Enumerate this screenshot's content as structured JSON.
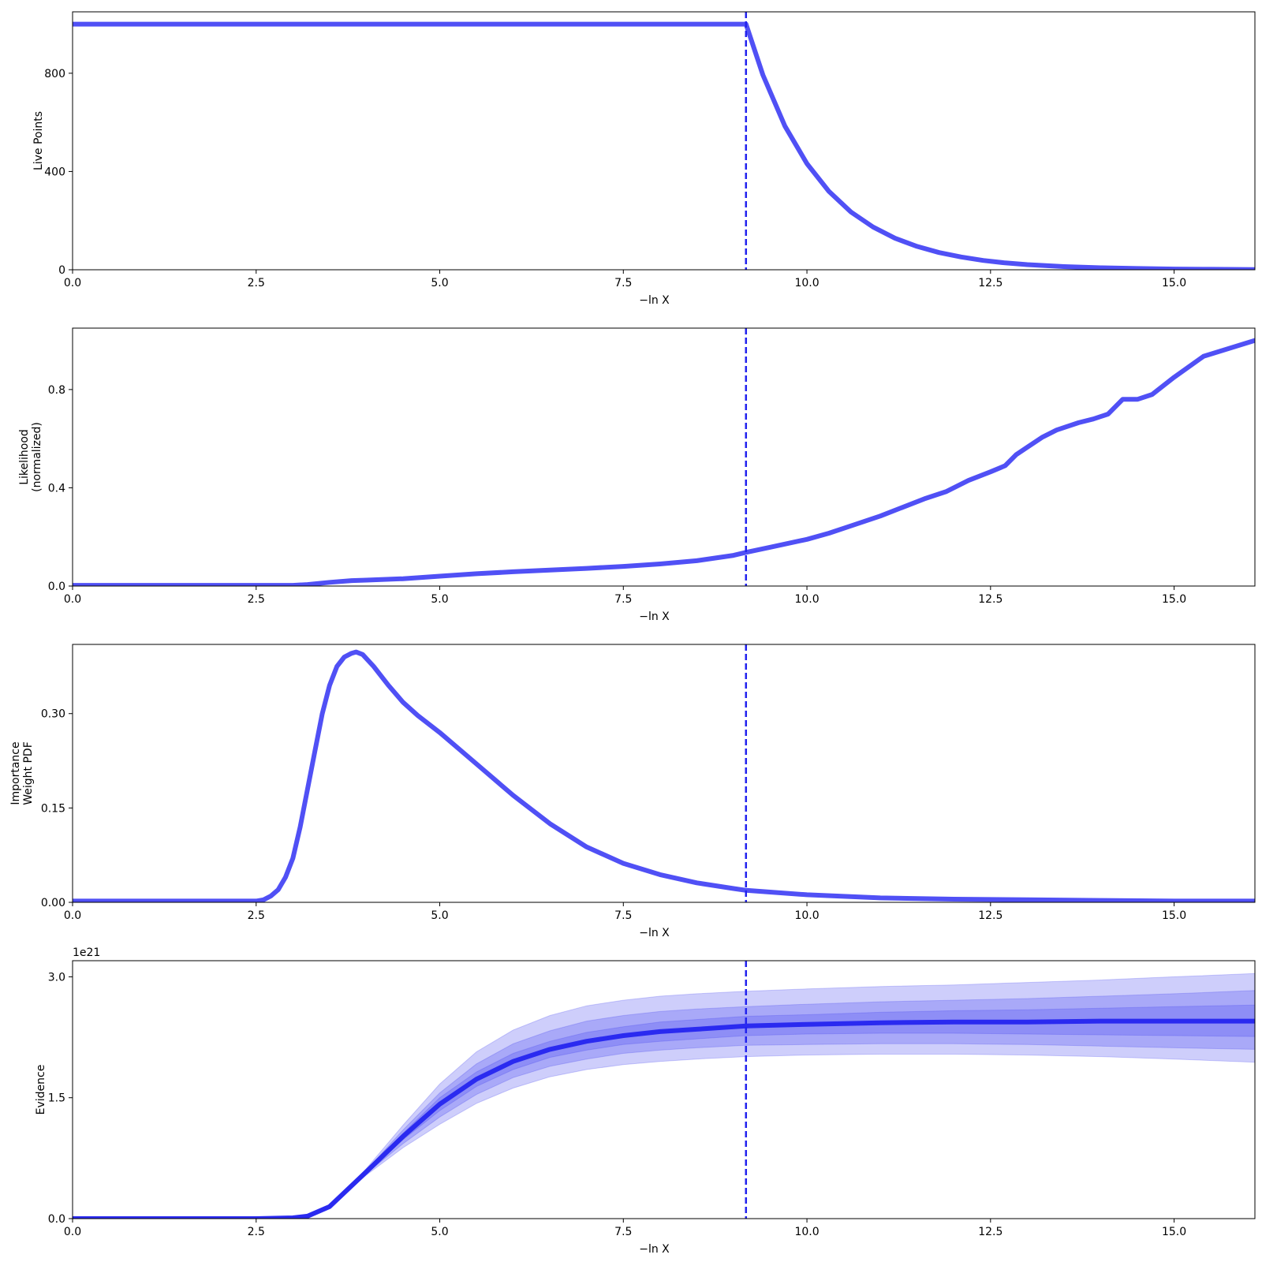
{
  "figure": {
    "marker_color": "#2222ee",
    "line_color": "#5050f5"
  },
  "chart_data": [
    {
      "type": "line",
      "name": "live-points",
      "xlabel": "−ln X",
      "ylabel": [
        "Live Points"
      ],
      "xlim": [
        0,
        16.1
      ],
      "ylim": [
        0,
        1050
      ],
      "xticks": [
        0,
        2.5,
        5,
        7.5,
        10,
        12.5,
        15
      ],
      "xtick_labels": [
        "0.0",
        "2.5",
        "5.0",
        "7.5",
        "10.0",
        "12.5",
        "15.0"
      ],
      "yticks": [
        0,
        400,
        800
      ],
      "ytick_labels": [
        "0",
        "400",
        "800"
      ],
      "marker_x": 9.17,
      "series": [
        {
          "x": [
            0,
            9.17,
            9.4,
            9.7,
            10.0,
            10.3,
            10.6,
            10.9,
            11.2,
            11.5,
            11.8,
            12.1,
            12.4,
            12.7,
            13.0,
            13.5,
            14.0,
            14.5,
            15.0,
            15.5,
            16.1
          ],
          "y": [
            1000,
            1000,
            793,
            585,
            432,
            319,
            235,
            174,
            128,
            95,
            70,
            52,
            38,
            28,
            21,
            13,
            8,
            5,
            3,
            2,
            1
          ]
        }
      ]
    },
    {
      "type": "line",
      "name": "likelihood",
      "xlabel": "−ln X",
      "ylabel": [
        "Likelihood",
        "(normalized)"
      ],
      "xlim": [
        0,
        16.1
      ],
      "ylim": [
        0,
        1.05
      ],
      "xticks": [
        0,
        2.5,
        5,
        7.5,
        10,
        12.5,
        15
      ],
      "xtick_labels": [
        "0.0",
        "2.5",
        "5.0",
        "7.5",
        "10.0",
        "12.5",
        "15.0"
      ],
      "yticks": [
        0,
        0.4,
        0.8
      ],
      "ytick_labels": [
        "0.0",
        "0.4",
        "0.8"
      ],
      "marker_x": 9.17,
      "series": [
        {
          "x": [
            0,
            3.0,
            3.2,
            3.5,
            3.8,
            4.0,
            4.5,
            5.0,
            5.5,
            6.0,
            6.5,
            7.0,
            7.5,
            8.0,
            8.5,
            9.0,
            9.17,
            9.5,
            10.0,
            10.3,
            10.6,
            11.0,
            11.3,
            11.6,
            11.9,
            12.2,
            12.5,
            12.7,
            12.85,
            13.0,
            13.2,
            13.4,
            13.7,
            13.9,
            14.1,
            14.3,
            14.5,
            14.7,
            15.0,
            15.4,
            16.1
          ],
          "y": [
            0.003,
            0.003,
            0.006,
            0.015,
            0.022,
            0.024,
            0.03,
            0.04,
            0.05,
            0.058,
            0.065,
            0.072,
            0.08,
            0.09,
            0.103,
            0.125,
            0.137,
            0.158,
            0.19,
            0.215,
            0.245,
            0.285,
            0.32,
            0.355,
            0.385,
            0.43,
            0.465,
            0.49,
            0.535,
            0.565,
            0.605,
            0.635,
            0.665,
            0.68,
            0.7,
            0.76,
            0.76,
            0.78,
            0.85,
            0.935,
            1.0
          ]
        }
      ]
    },
    {
      "type": "line",
      "name": "importance-weight",
      "xlabel": "−ln X",
      "ylabel": [
        "Importance",
        "Weight PDF"
      ],
      "xlim": [
        0,
        16.1
      ],
      "ylim": [
        0,
        0.41
      ],
      "xticks": [
        0,
        2.5,
        5,
        7.5,
        10,
        12.5,
        15
      ],
      "xtick_labels": [
        "0.0",
        "2.5",
        "5.0",
        "7.5",
        "10.0",
        "12.5",
        "15.0"
      ],
      "yticks": [
        0,
        0.15,
        0.3
      ],
      "ytick_labels": [
        "0.00",
        "0.15",
        "0.30"
      ],
      "marker_x": 9.17,
      "series": [
        {
          "x": [
            0,
            2.5,
            2.6,
            2.7,
            2.8,
            2.9,
            3.0,
            3.1,
            3.2,
            3.3,
            3.4,
            3.5,
            3.6,
            3.7,
            3.8,
            3.86,
            3.95,
            4.1,
            4.3,
            4.5,
            4.7,
            5.0,
            5.3,
            5.6,
            6.0,
            6.5,
            7.0,
            7.5,
            8.0,
            8.5,
            9.0,
            9.17,
            10.0,
            11.0,
            12.0,
            13.0,
            14.0,
            15.0,
            16.1
          ],
          "y": [
            0.002,
            0.002,
            0.004,
            0.01,
            0.02,
            0.04,
            0.07,
            0.12,
            0.18,
            0.24,
            0.3,
            0.345,
            0.375,
            0.39,
            0.396,
            0.398,
            0.394,
            0.375,
            0.345,
            0.318,
            0.297,
            0.27,
            0.24,
            0.21,
            0.17,
            0.125,
            0.088,
            0.062,
            0.044,
            0.031,
            0.022,
            0.019,
            0.012,
            0.007,
            0.005,
            0.004,
            0.003,
            0.002,
            0.002
          ]
        }
      ]
    },
    {
      "type": "area",
      "name": "evidence",
      "xlabel": "−ln X",
      "ylabel": [
        "Evidence"
      ],
      "offset_label": "1e21",
      "xlim": [
        0,
        16.1
      ],
      "ylim": [
        0,
        3.2
      ],
      "xticks": [
        0,
        2.5,
        5,
        7.5,
        10,
        12.5,
        15
      ],
      "xtick_labels": [
        "0.0",
        "2.5",
        "5.0",
        "7.5",
        "10.0",
        "12.5",
        "15.0"
      ],
      "yticks": [
        0,
        1.5,
        3.0
      ],
      "ytick_labels": [
        "0.0",
        "1.5",
        "3.0"
      ],
      "marker_x": 9.17,
      "x": [
        0,
        2.5,
        3.0,
        3.2,
        3.5,
        4.0,
        4.5,
        5.0,
        5.5,
        6.0,
        6.5,
        7.0,
        7.5,
        8.0,
        8.5,
        9.17,
        10.0,
        11.0,
        12.0,
        13.0,
        14.0,
        15.0,
        16.1
      ],
      "median": [
        0.0,
        0.0,
        0.01,
        0.03,
        0.15,
        0.58,
        1.02,
        1.42,
        1.73,
        1.95,
        2.1,
        2.2,
        2.27,
        2.32,
        2.35,
        2.39,
        2.41,
        2.43,
        2.44,
        2.44,
        2.45,
        2.45,
        2.45
      ],
      "bands": [
        {
          "lower": [
            0.0,
            0.0,
            0.01,
            0.03,
            0.15,
            0.54,
            0.88,
            1.17,
            1.43,
            1.62,
            1.76,
            1.85,
            1.91,
            1.95,
            1.98,
            2.01,
            2.03,
            2.04,
            2.04,
            2.03,
            2.01,
            1.98,
            1.94
          ],
          "upper": [
            0.0,
            0.0,
            0.01,
            0.03,
            0.15,
            0.62,
            1.16,
            1.67,
            2.07,
            2.34,
            2.52,
            2.64,
            2.71,
            2.76,
            2.79,
            2.82,
            2.85,
            2.88,
            2.9,
            2.93,
            2.96,
            3.0,
            3.04
          ]
        },
        {
          "lower": [
            0.0,
            0.0,
            0.01,
            0.03,
            0.15,
            0.56,
            0.93,
            1.26,
            1.54,
            1.75,
            1.89,
            1.98,
            2.05,
            2.09,
            2.12,
            2.15,
            2.16,
            2.17,
            2.17,
            2.16,
            2.14,
            2.12,
            2.1
          ],
          "upper": [
            0.0,
            0.0,
            0.01,
            0.03,
            0.15,
            0.6,
            1.1,
            1.56,
            1.92,
            2.17,
            2.33,
            2.45,
            2.52,
            2.57,
            2.6,
            2.63,
            2.66,
            2.69,
            2.71,
            2.73,
            2.76,
            2.79,
            2.83
          ]
        },
        {
          "lower": [
            0.0,
            0.0,
            0.01,
            0.03,
            0.15,
            0.57,
            0.98,
            1.34,
            1.64,
            1.85,
            2.0,
            2.09,
            2.16,
            2.2,
            2.23,
            2.27,
            2.29,
            2.3,
            2.3,
            2.29,
            2.28,
            2.27,
            2.26
          ],
          "upper": [
            0.0,
            0.0,
            0.01,
            0.03,
            0.15,
            0.59,
            1.06,
            1.5,
            1.82,
            2.05,
            2.2,
            2.31,
            2.38,
            2.44,
            2.47,
            2.51,
            2.53,
            2.56,
            2.58,
            2.59,
            2.61,
            2.63,
            2.65
          ]
        }
      ]
    }
  ]
}
